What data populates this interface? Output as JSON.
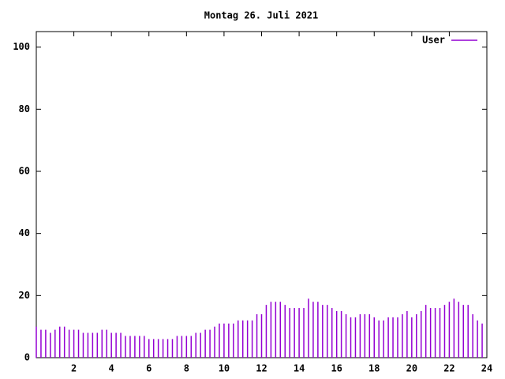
{
  "chart_data": {
    "type": "impulses",
    "title": "Montag 26. Juli 2021",
    "x": [
      0,
      0.25,
      0.5,
      0.75,
      1,
      1.25,
      1.5,
      1.75,
      2,
      2.25,
      2.5,
      2.75,
      3,
      3.25,
      3.5,
      3.75,
      4,
      4.25,
      4.5,
      4.75,
      5,
      5.25,
      5.5,
      5.75,
      6,
      6.25,
      6.5,
      6.75,
      7,
      7.25,
      7.5,
      7.75,
      8,
      8.25,
      8.5,
      8.75,
      9,
      9.25,
      9.5,
      9.75,
      10,
      10.25,
      10.5,
      10.75,
      11,
      11.25,
      11.5,
      11.75,
      12,
      12.25,
      12.5,
      12.75,
      13,
      13.25,
      13.5,
      13.75,
      14,
      14.25,
      14.5,
      14.75,
      15,
      15.25,
      15.5,
      15.75,
      16,
      16.25,
      16.5,
      16.75,
      17,
      17.25,
      17.5,
      17.75,
      18,
      18.25,
      18.5,
      18.75,
      19,
      19.25,
      19.5,
      19.75,
      20,
      20.25,
      20.5,
      20.75,
      21,
      21.25,
      21.5,
      21.75,
      22,
      22.25,
      22.5,
      22.75,
      23,
      23.25,
      23.5,
      23.75
    ],
    "series": [
      {
        "name": "User",
        "color": "#9400d3",
        "values": [
          10,
          9,
          9,
          8,
          9,
          10,
          10,
          9,
          9,
          9,
          8,
          8,
          8,
          8,
          9,
          9,
          8,
          8,
          8,
          7,
          7,
          7,
          7,
          7,
          6,
          6,
          6,
          6,
          6,
          6,
          7,
          7,
          7,
          7,
          8,
          8,
          9,
          9,
          10,
          11,
          11,
          11,
          11,
          12,
          12,
          12,
          12,
          14,
          14,
          17,
          18,
          18,
          18,
          17,
          16,
          16,
          16,
          16,
          19,
          18,
          18,
          17,
          17,
          16,
          15,
          15,
          14,
          13,
          13,
          14,
          14,
          14,
          13,
          12,
          12,
          13,
          13,
          13,
          14,
          15,
          13,
          14,
          15,
          17,
          16,
          16,
          16,
          17,
          18,
          19,
          18,
          17,
          17,
          14,
          12,
          11
        ]
      }
    ],
    "xlim": [
      0,
      24
    ],
    "xticks": [
      2,
      4,
      6,
      8,
      10,
      12,
      14,
      16,
      18,
      20,
      22,
      24
    ],
    "ylim": [
      0,
      105
    ],
    "yticks": [
      0,
      20,
      40,
      60,
      80,
      100
    ]
  }
}
